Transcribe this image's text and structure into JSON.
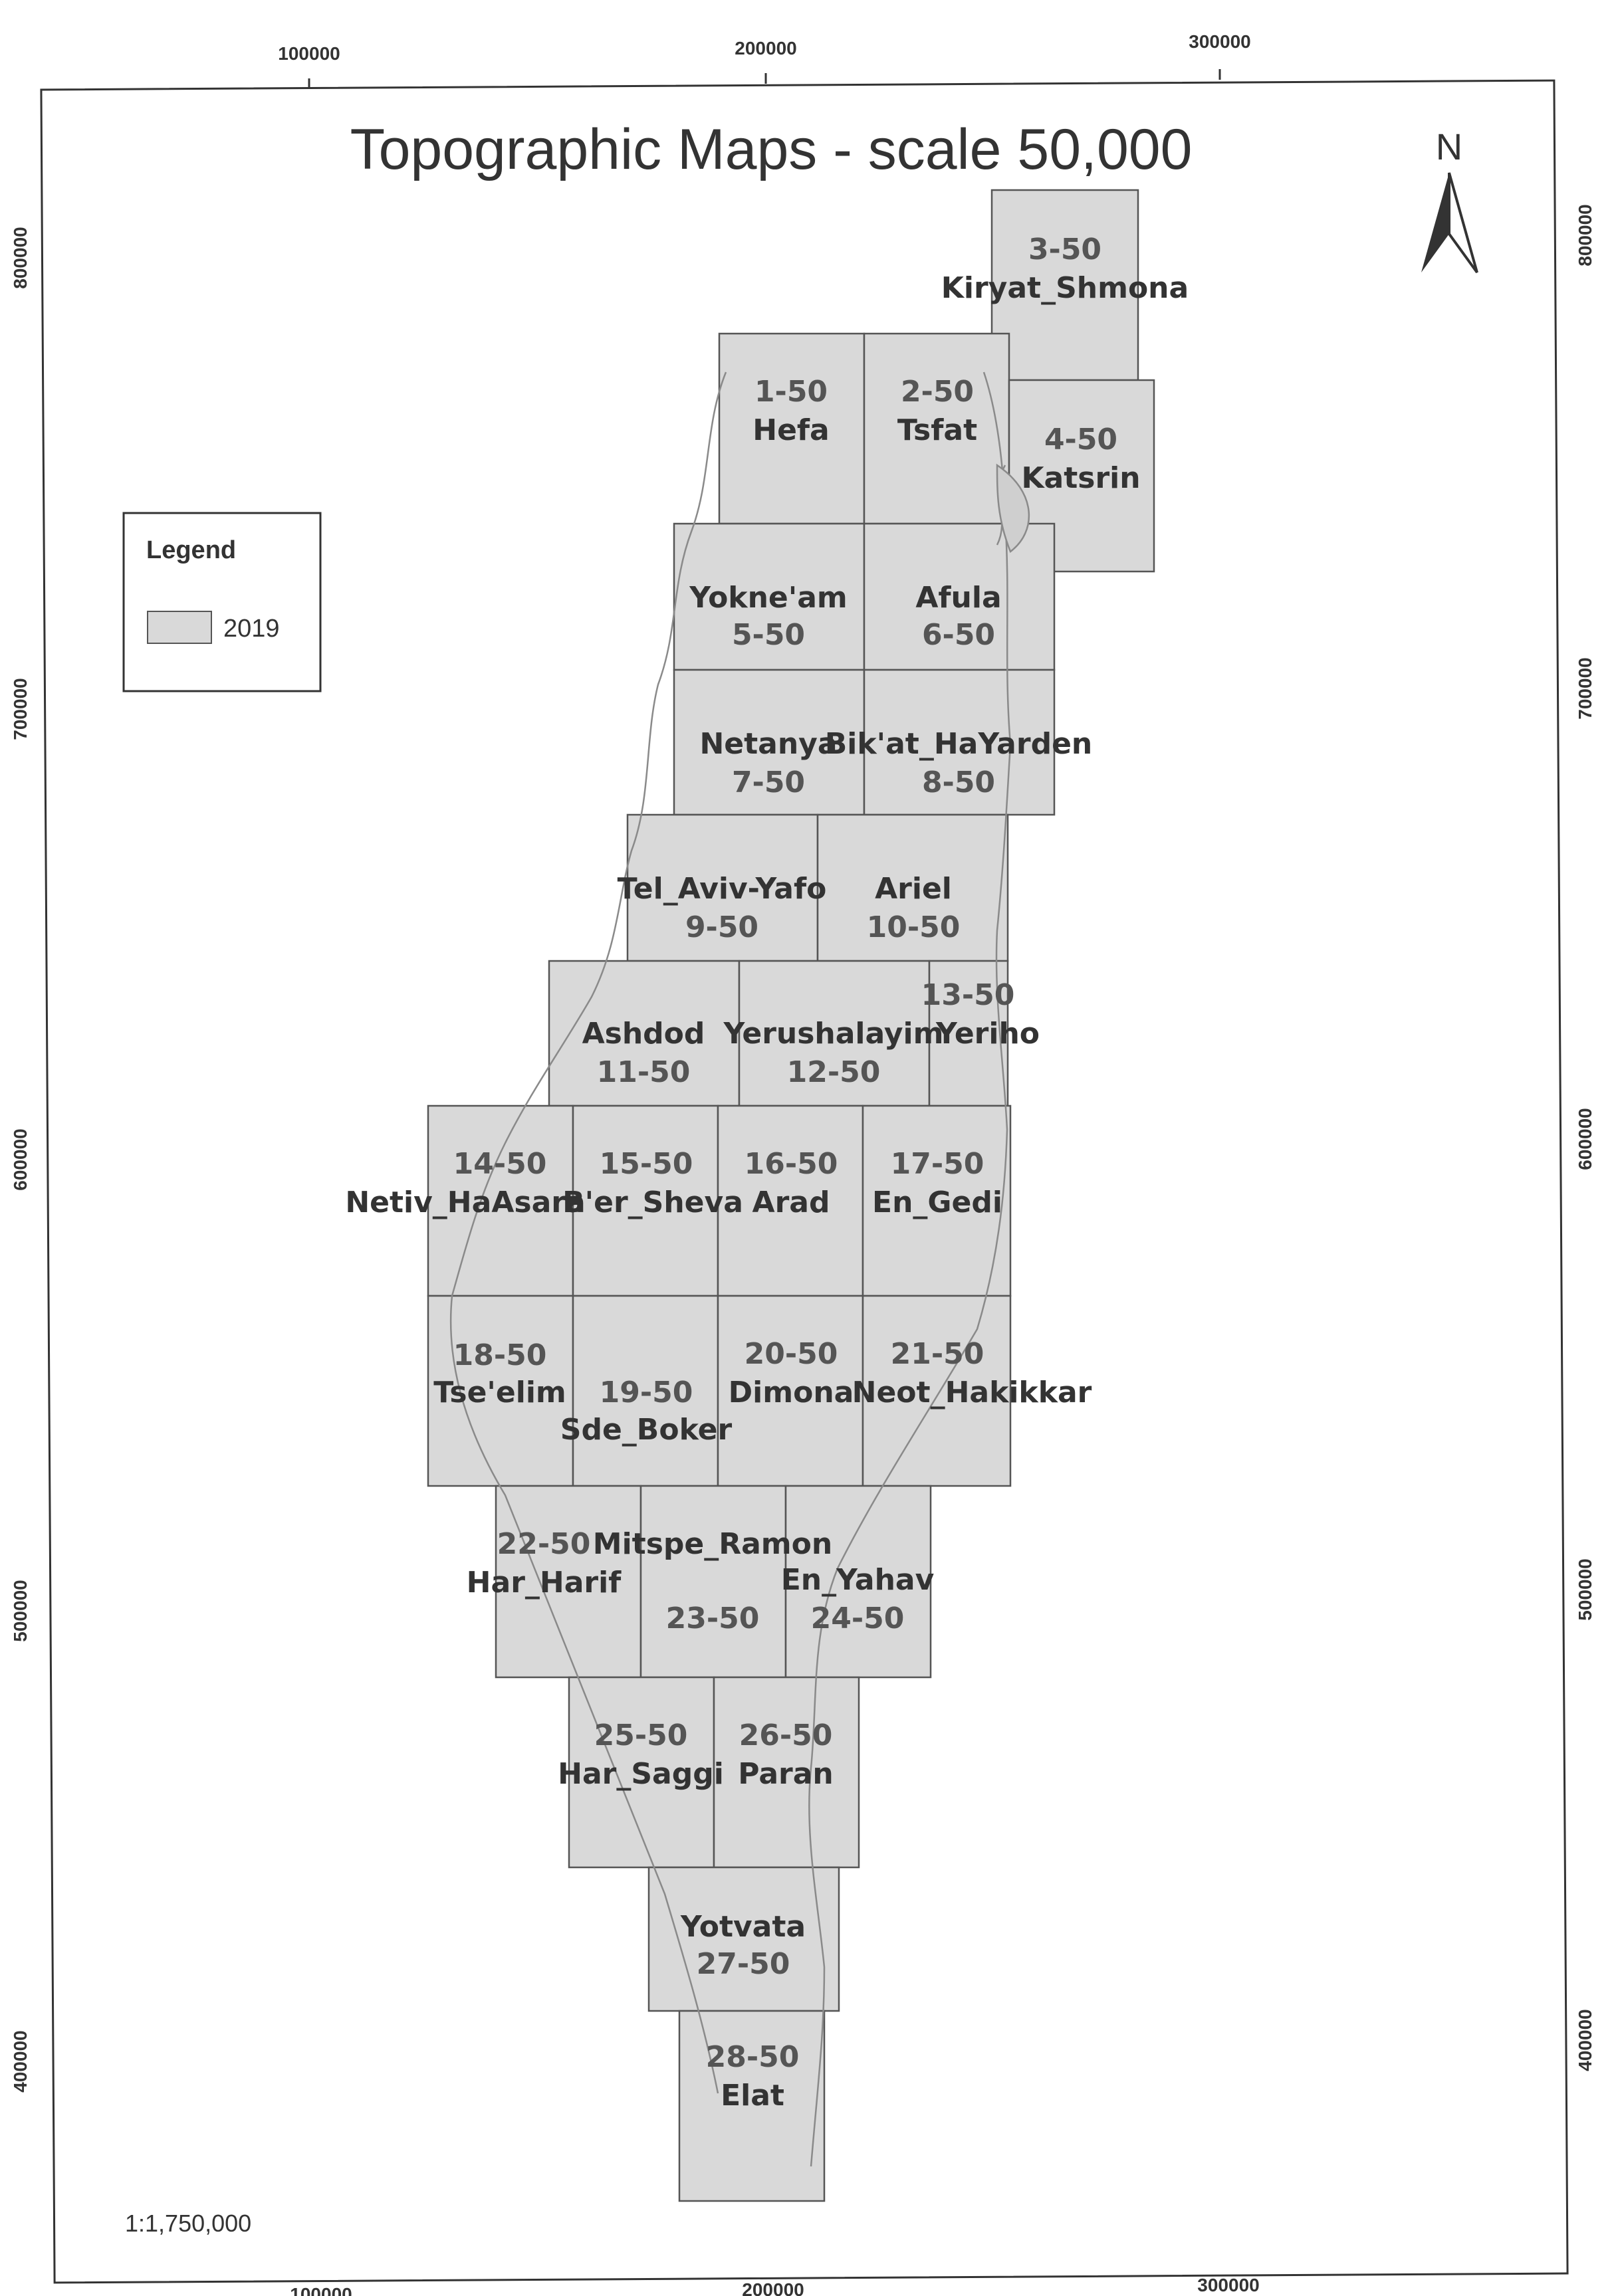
{
  "title": "Topographic Maps - scale 50,000",
  "north_label": "N",
  "legend": {
    "title": "Legend",
    "item_label": "2019",
    "item_color": "#d9d9d9"
  },
  "scale_text": "1:1,750,000",
  "colors": {
    "sheet_fill": "#d9d9d9",
    "sheet_border": "#555555",
    "frame": "#333333"
  },
  "grid": {
    "x_ticks": [
      "100000",
      "200000",
      "300000"
    ],
    "y_ticks": [
      "800000",
      "700000",
      "600000",
      "500000",
      "400000"
    ]
  },
  "sheets": [
    {
      "num": "3-50",
      "name": "Kiryat_Shmona"
    },
    {
      "num": "1-50",
      "name": "Hefa"
    },
    {
      "num": "2-50",
      "name": "Tsfat"
    },
    {
      "num": "4-50",
      "name": "Katsrin"
    },
    {
      "num": "5-50",
      "name": "Yokne'am"
    },
    {
      "num": "6-50",
      "name": "Afula"
    },
    {
      "num": "7-50",
      "name": "Netanya"
    },
    {
      "num": "8-50",
      "name": "Bik'at_HaYarden"
    },
    {
      "num": "9-50",
      "name": "Tel_Aviv-Yafo"
    },
    {
      "num": "10-50",
      "name": "Ariel"
    },
    {
      "num": "11-50",
      "name": "Ashdod"
    },
    {
      "num": "12-50",
      "name": "Yerushalayim"
    },
    {
      "num": "13-50",
      "name": "Yeriho"
    },
    {
      "num": "14-50",
      "name": "Netiv_HaAsara"
    },
    {
      "num": "15-50",
      "name": "B'er_Sheva"
    },
    {
      "num": "16-50",
      "name": "Arad"
    },
    {
      "num": "17-50",
      "name": "En_Gedi"
    },
    {
      "num": "18-50",
      "name": "Tse'elim"
    },
    {
      "num": "19-50",
      "name": "Sde_Boker"
    },
    {
      "num": "20-50",
      "name": "Dimona"
    },
    {
      "num": "21-50",
      "name": "Neot_Hakikkar"
    },
    {
      "num": "22-50",
      "name": "Har_Harif"
    },
    {
      "num": "23-50",
      "name": "Mitspe_Ramon"
    },
    {
      "num": "24-50",
      "name": "En_Yahav"
    },
    {
      "num": "25-50",
      "name": "Har_Saggi"
    },
    {
      "num": "26-50",
      "name": "Paran"
    },
    {
      "num": "27-50",
      "name": "Yotvata"
    },
    {
      "num": "28-50",
      "name": "Elat"
    }
  ]
}
